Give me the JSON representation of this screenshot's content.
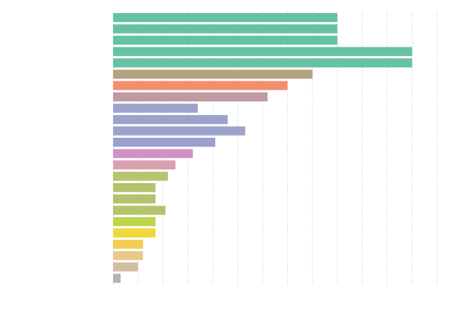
{
  "chart_data": {
    "type": "bar",
    "orientation": "horizontal",
    "title": "",
    "xlabel": "",
    "ylabel": "",
    "xlim": [
      0,
      70
    ],
    "grid": "vertical-dotted",
    "categories": [
      "",
      "",
      "",
      "",
      "",
      "",
      "",
      "",
      "",
      "",
      "",
      "",
      "",
      "",
      "",
      "",
      "",
      "",
      "",
      "",
      "",
      "",
      "",
      ""
    ],
    "values": [
      45,
      45,
      45,
      60,
      60,
      40,
      35,
      31,
      17,
      23,
      26.5,
      20.5,
      16,
      12.5,
      11,
      8.5,
      8.5,
      10.5,
      8.5,
      8.5,
      6,
      6,
      5,
      1.5
    ],
    "colors": [
      "#66c2a5",
      "#66c2a5",
      "#66c2a5",
      "#66c2a5",
      "#66c2a5",
      "#b3a37e",
      "#f28e6c",
      "#bf9aa3",
      "#9da2cd",
      "#9da2cd",
      "#9da2cd",
      "#9b9fcc",
      "#d191c7",
      "#d9a0b1",
      "#b5c66f",
      "#b4c16d",
      "#b4c16d",
      "#b3c56b",
      "#bdd64b",
      "#efd83a",
      "#f4cd55",
      "#e7c98a",
      "#d2bea0",
      "#b3b3b3"
    ]
  }
}
